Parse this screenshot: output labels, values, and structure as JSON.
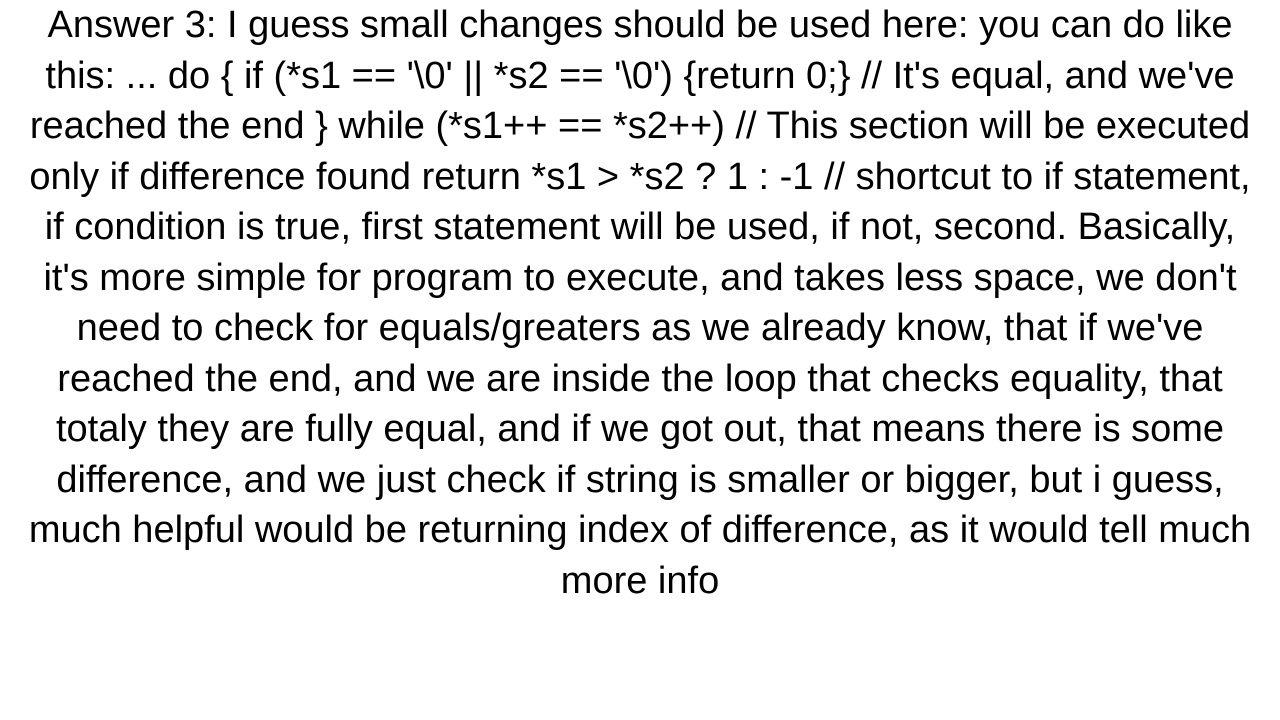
{
  "document": {
    "text": "Answer 3: I guess small changes should be used here: you can do like this: ... do {   if (*s1 == '\\0' || *s2 == '\\0')   {return 0;} // It's equal, and we've reached the end } while (*s1++ == *s2++) // This section will be executed only if difference found  return *s1 > *s2 ? 1 : -1 // shortcut to if statement, if condition is true, first statement will be used, if not, second.  Basically, it's more simple for program to execute, and takes less space, we don't need to check for equals/greaters as we already know, that if we've reached the end, and we are inside the loop that checks equality, that totaly they are fully equal, and if we got out, that means there is some difference, and we just check if string is smaller or bigger, but i guess, much helpful would be returning index of difference, as it would tell much more info",
    "font_size": 38,
    "font_family": "Arial, Helvetica, sans-serif",
    "text_color": "#000000",
    "background_color": "#ffffff",
    "text_align": "center",
    "line_height": 1.33
  }
}
